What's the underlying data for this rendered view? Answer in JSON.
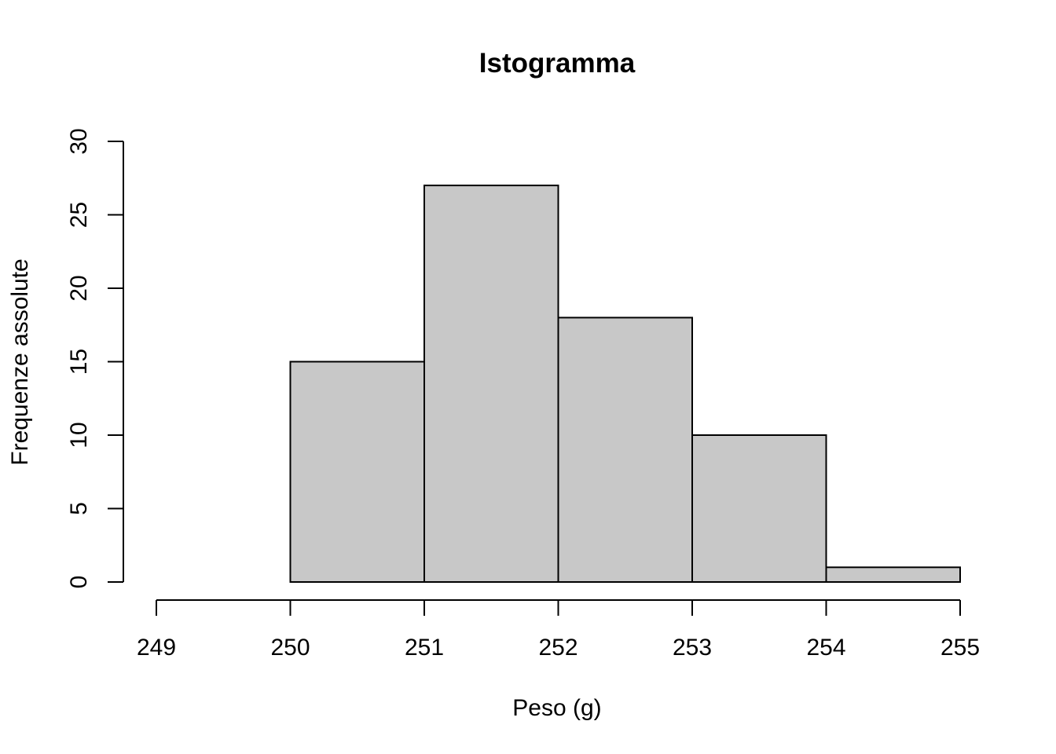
{
  "chart_data": {
    "type": "bar",
    "title": "Istogramma",
    "xlabel": "Peso (g)",
    "ylabel": "Frequenze assolute",
    "bins": [
      {
        "from": 249,
        "to": 250,
        "count": 0
      },
      {
        "from": 250,
        "to": 251,
        "count": 15
      },
      {
        "from": 251,
        "to": 252,
        "count": 27
      },
      {
        "from": 252,
        "to": 253,
        "count": 18
      },
      {
        "from": 253,
        "to": 254,
        "count": 10
      },
      {
        "from": 254,
        "to": 255,
        "count": 1
      }
    ],
    "xticks": [
      "249",
      "250",
      "251",
      "252",
      "253",
      "254",
      "255"
    ],
    "yticks": [
      "0",
      "5",
      "10",
      "15",
      "20",
      "25",
      "30"
    ],
    "xlim": [
      249,
      255
    ],
    "ylim": [
      0,
      30
    ],
    "bar_color": "#C8C8C8",
    "edge_color": "#000000",
    "grid": false,
    "legend": "none"
  }
}
